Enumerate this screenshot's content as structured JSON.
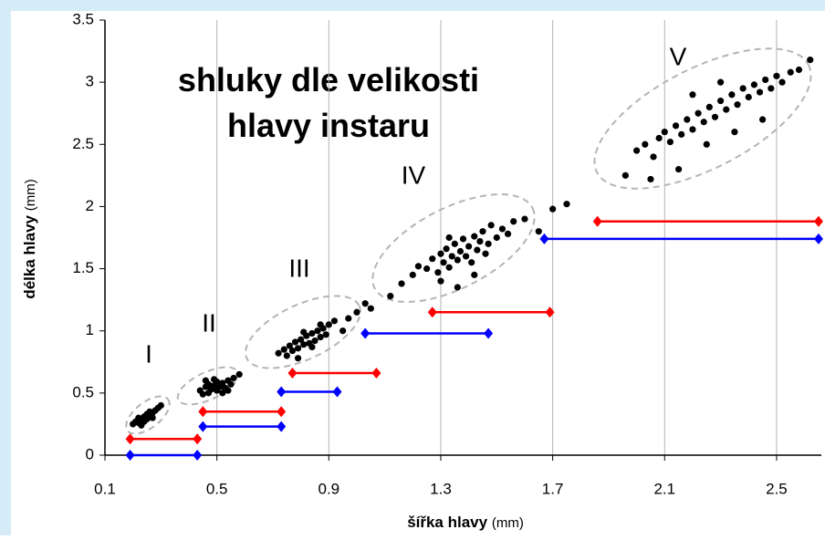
{
  "chart_data": {
    "type": "scatter",
    "title_lines": [
      "shluky dle velikosti",
      "hlavy instaru"
    ],
    "xlabel": {
      "text": "šířka hlavy",
      "unit": "(mm)"
    },
    "ylabel": {
      "text": "délka hlavy",
      "unit": "(mm)"
    },
    "xlim": [
      0.1,
      2.66
    ],
    "ylim": [
      0,
      3.5
    ],
    "xticks": [
      0.1,
      0.5,
      0.9,
      1.3,
      1.7,
      2.1,
      2.5
    ],
    "yticks": [
      0,
      0.5,
      1,
      1.5,
      2,
      2.5,
      3,
      3.5
    ],
    "grid": "x",
    "point_color": "#000000",
    "clusters": [
      {
        "label": "I",
        "x": [
          0.2,
          0.21,
          0.22,
          0.22,
          0.23,
          0.24,
          0.24,
          0.25,
          0.25,
          0.26,
          0.26,
          0.27,
          0.28,
          0.29,
          0.3,
          0.23,
          0.27
        ],
        "y": [
          0.25,
          0.27,
          0.26,
          0.3,
          0.28,
          0.31,
          0.27,
          0.33,
          0.29,
          0.32,
          0.35,
          0.34,
          0.36,
          0.38,
          0.4,
          0.24,
          0.3
        ]
      },
      {
        "label": "II",
        "x": [
          0.44,
          0.45,
          0.46,
          0.47,
          0.47,
          0.48,
          0.49,
          0.5,
          0.5,
          0.51,
          0.52,
          0.53,
          0.54,
          0.55,
          0.56,
          0.58,
          0.46,
          0.52,
          0.49,
          0.54
        ],
        "y": [
          0.52,
          0.49,
          0.55,
          0.5,
          0.57,
          0.53,
          0.56,
          0.52,
          0.59,
          0.55,
          0.58,
          0.54,
          0.6,
          0.57,
          0.62,
          0.65,
          0.6,
          0.5,
          0.61,
          0.52
        ]
      },
      {
        "label": "III",
        "x": [
          0.72,
          0.74,
          0.75,
          0.76,
          0.77,
          0.78,
          0.79,
          0.8,
          0.81,
          0.82,
          0.83,
          0.84,
          0.85,
          0.86,
          0.87,
          0.88,
          0.89,
          0.9,
          0.92,
          0.95,
          0.97,
          1.0,
          1.03,
          1.05,
          0.79,
          0.84,
          0.87,
          0.81
        ],
        "y": [
          0.82,
          0.85,
          0.8,
          0.88,
          0.84,
          0.91,
          0.86,
          0.93,
          0.89,
          0.96,
          0.9,
          0.98,
          0.92,
          1.0,
          0.95,
          1.02,
          0.97,
          1.05,
          1.08,
          1.0,
          1.1,
          1.15,
          1.22,
          1.18,
          0.78,
          0.87,
          1.05,
          0.99
        ]
      },
      {
        "label": "IV",
        "x": [
          1.12,
          1.16,
          1.2,
          1.22,
          1.25,
          1.27,
          1.29,
          1.3,
          1.31,
          1.32,
          1.33,
          1.34,
          1.35,
          1.36,
          1.37,
          1.38,
          1.39,
          1.4,
          1.41,
          1.42,
          1.43,
          1.44,
          1.45,
          1.46,
          1.47,
          1.48,
          1.5,
          1.52,
          1.54,
          1.56,
          1.6,
          1.65,
          1.7,
          1.75,
          1.3,
          1.36,
          1.42,
          1.33
        ],
        "y": [
          1.28,
          1.38,
          1.45,
          1.52,
          1.5,
          1.58,
          1.47,
          1.62,
          1.55,
          1.66,
          1.51,
          1.6,
          1.7,
          1.57,
          1.64,
          1.74,
          1.6,
          1.68,
          1.55,
          1.76,
          1.65,
          1.72,
          1.8,
          1.62,
          1.7,
          1.85,
          1.75,
          1.82,
          1.78,
          1.88,
          1.9,
          1.8,
          1.98,
          2.02,
          1.4,
          1.35,
          1.45,
          1.75
        ]
      },
      {
        "label": "V",
        "x": [
          1.96,
          2.0,
          2.03,
          2.06,
          2.08,
          2.1,
          2.12,
          2.14,
          2.16,
          2.18,
          2.2,
          2.22,
          2.24,
          2.26,
          2.28,
          2.3,
          2.32,
          2.34,
          2.36,
          2.38,
          2.4,
          2.42,
          2.44,
          2.46,
          2.48,
          2.5,
          2.52,
          2.55,
          2.58,
          2.62,
          2.05,
          2.15,
          2.25,
          2.35,
          2.45,
          2.2,
          2.3
        ],
        "y": [
          2.25,
          2.45,
          2.5,
          2.4,
          2.55,
          2.6,
          2.52,
          2.65,
          2.58,
          2.7,
          2.62,
          2.75,
          2.68,
          2.8,
          2.72,
          2.85,
          2.78,
          2.9,
          2.82,
          2.95,
          2.88,
          2.98,
          2.92,
          3.02,
          2.95,
          3.05,
          3.0,
          3.08,
          3.1,
          3.18,
          2.22,
          2.3,
          2.5,
          2.6,
          2.7,
          2.9,
          3.0
        ]
      }
    ],
    "ranges": [
      {
        "color": "#0000ff",
        "y": 0,
        "x0": 0.19,
        "x1": 0.43
      },
      {
        "color": "#ff0000",
        "y": 0.13,
        "x0": 0.19,
        "x1": 0.43
      },
      {
        "color": "#0000ff",
        "y": 0.23,
        "x0": 0.45,
        "x1": 0.73
      },
      {
        "color": "#ff0000",
        "y": 0.35,
        "x0": 0.45,
        "x1": 0.73
      },
      {
        "color": "#0000ff",
        "y": 0.51,
        "x0": 0.73,
        "x1": 0.93
      },
      {
        "color": "#ff0000",
        "y": 0.66,
        "x0": 0.77,
        "x1": 1.07
      },
      {
        "color": "#0000ff",
        "y": 0.98,
        "x0": 1.03,
        "x1": 1.47
      },
      {
        "color": "#ff0000",
        "y": 1.15,
        "x0": 1.27,
        "x1": 1.69
      },
      {
        "color": "#0000ff",
        "y": 1.74,
        "x0": 1.67,
        "x1": 2.65
      },
      {
        "color": "#ff0000",
        "y": 1.88,
        "x0": 1.86,
        "x1": 2.65
      }
    ]
  }
}
